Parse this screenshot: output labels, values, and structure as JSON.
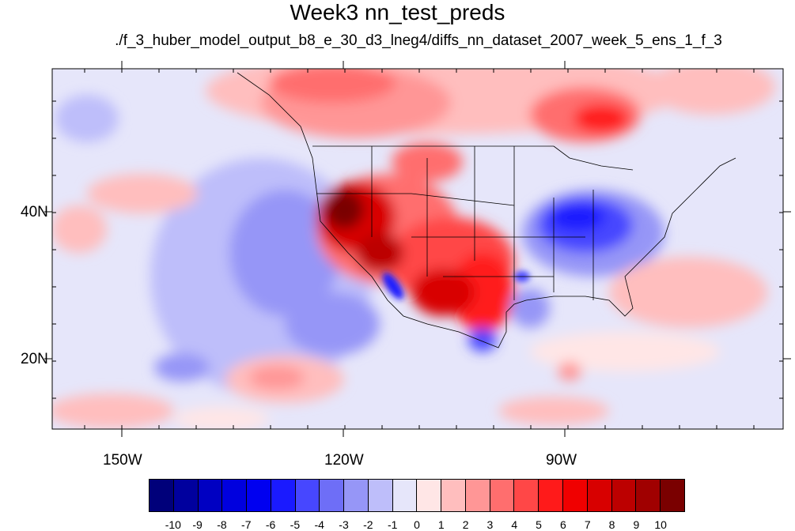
{
  "title": "Week3 nn_test_preds",
  "subtitle": "./f_3_huber_model_output_b8_e_30_d3_lneg4/diffs_nn_dataset_2007_week_5_ens_1_f_3",
  "axes": {
    "x_labels": [
      "150W",
      "120W",
      "90W"
    ],
    "y_labels": [
      "40N",
      "20N"
    ]
  },
  "colorbar": {
    "colors": [
      "#00007a",
      "#00009e",
      "#0000c2",
      "#0000de",
      "#0000f0",
      "#1a1aff",
      "#4747ff",
      "#6e6ef7",
      "#9696f7",
      "#bebefa",
      "#e6e6fa",
      "#ffe6e6",
      "#ffbebe",
      "#ff9696",
      "#ff6e6e",
      "#ff4747",
      "#ff1a1a",
      "#f00000",
      "#d80000",
      "#bc0000",
      "#a00000",
      "#7a0000"
    ],
    "labels": [
      "-10",
      "-9",
      "-8",
      "-7",
      "-6",
      "-5",
      "-4",
      "-3",
      "-2",
      "-1",
      "0",
      "1",
      "2",
      "3",
      "4",
      "5",
      "6",
      "7",
      "8",
      "9",
      "10"
    ]
  }
}
